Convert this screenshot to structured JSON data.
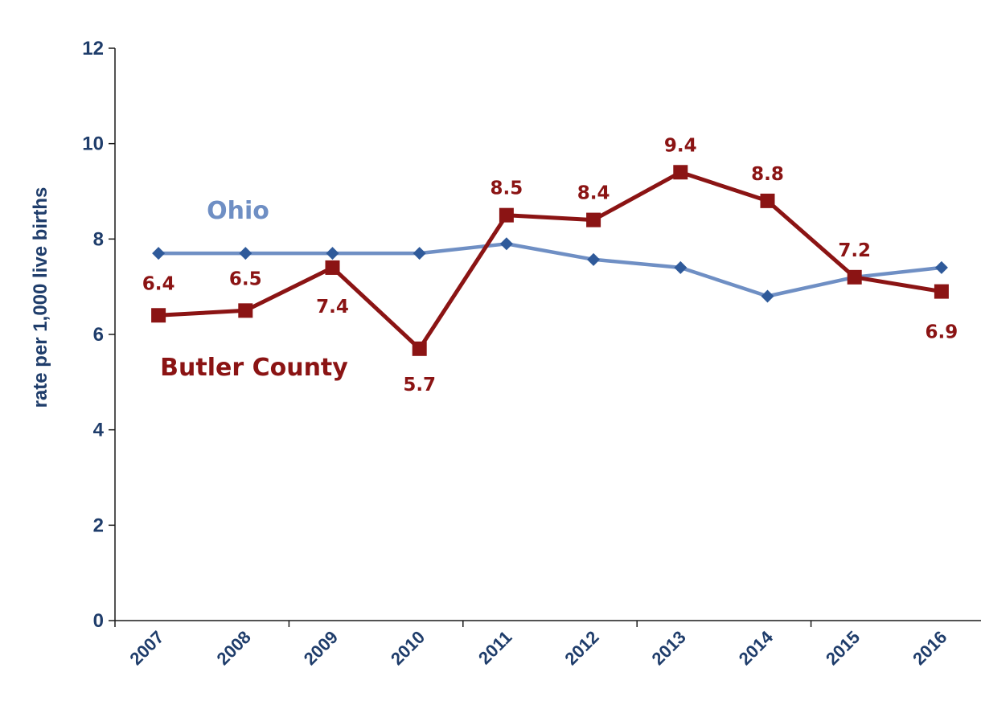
{
  "chart_data": {
    "type": "line",
    "title": "",
    "xlabel": "",
    "ylabel": "rate per 1,000 live births",
    "ylim": [
      0,
      12
    ],
    "yticks": [
      "0",
      "2",
      "4",
      "6",
      "8",
      "10",
      "12"
    ],
    "categories": [
      "2007",
      "2008",
      "2009",
      "2010",
      "2011",
      "2012",
      "2013",
      "2014",
      "2015",
      "2016"
    ],
    "grid": false,
    "legend": "inline labels",
    "series": [
      {
        "name": "Ohio",
        "color": "#6f8fc4",
        "marker": "diamond",
        "values": [
          7.7,
          7.7,
          7.7,
          7.7,
          7.9,
          7.57,
          7.4,
          6.8,
          7.2,
          7.4
        ],
        "data_labels": []
      },
      {
        "name": "Butler County",
        "color": "#8b1414",
        "marker": "square",
        "values": [
          6.4,
          6.5,
          7.4,
          5.7,
          8.5,
          8.4,
          9.4,
          8.8,
          7.2,
          6.9
        ],
        "data_labels": [
          "6.4",
          "6.5",
          "7.4",
          "5.7",
          "8.5",
          "8.4",
          "9.4",
          "8.8",
          "7.2",
          "6.9"
        ]
      }
    ]
  }
}
